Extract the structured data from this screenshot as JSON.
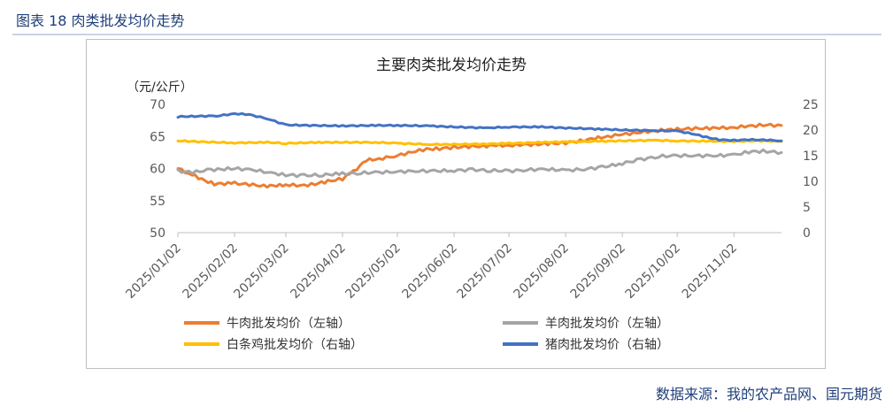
{
  "figure": {
    "title": "图表 18  肉类批发均价走势",
    "source": "数据来源：我的农产品网、国元期货"
  },
  "colors": {
    "beef": "#ED7D31",
    "mutton": "#A5A5A5",
    "chicken": "#FFC000",
    "pork": "#4472C4",
    "axis": "#bfbfbf",
    "text": "#595959"
  },
  "chart_data": {
    "type": "line",
    "title": "主要肉类批发均价走势",
    "left_unit": "（元/公斤）",
    "ylim_left": [
      50,
      70
    ],
    "ylim_right": [
      0,
      25
    ],
    "yticks_left": [
      50,
      55,
      60,
      65,
      70
    ],
    "yticks_right": [
      0,
      5,
      10,
      15,
      20,
      25
    ],
    "x_start": "2025/01/02",
    "x_end": "2025/11/28",
    "xtick_labels": [
      "2025/01/02",
      "2025/02/02",
      "2025/03/02",
      "2025/04/02",
      "2025/05/02",
      "2025/06/02",
      "2025/07/02",
      "2025/08/02",
      "2025/09/02",
      "2025/10/02",
      "2025/11/02"
    ],
    "legend_position": "bottom",
    "series": [
      {
        "name": "牛肉批发均价（左轴）",
        "axis": "left",
        "color_key": "beef",
        "x": [
          "2025/01/02",
          "2025/01/08",
          "2025/01/15",
          "2025/01/22",
          "2025/02/02",
          "2025/02/10",
          "2025/02/18",
          "2025/02/25",
          "2025/03/02",
          "2025/03/10",
          "2025/03/18",
          "2025/03/25",
          "2025/04/02",
          "2025/04/08",
          "2025/04/15",
          "2025/04/22",
          "2025/05/02",
          "2025/05/10",
          "2025/05/18",
          "2025/05/25",
          "2025/06/02",
          "2025/06/10",
          "2025/06/18",
          "2025/06/25",
          "2025/07/02",
          "2025/07/10",
          "2025/07/18",
          "2025/07/25",
          "2025/08/02",
          "2025/08/10",
          "2025/08/18",
          "2025/08/25",
          "2025/09/02",
          "2025/09/10",
          "2025/09/18",
          "2025/09/25",
          "2025/10/02",
          "2025/10/10",
          "2025/10/18",
          "2025/10/25",
          "2025/11/02",
          "2025/11/10",
          "2025/11/18",
          "2025/11/28"
        ],
        "y": [
          60.0,
          59.3,
          58.3,
          57.6,
          57.7,
          57.5,
          57.3,
          57.3,
          57.5,
          57.3,
          57.6,
          58.0,
          58.4,
          59.5,
          61.3,
          61.5,
          62.0,
          62.6,
          63.0,
          63.1,
          63.3,
          63.4,
          63.5,
          63.6,
          63.6,
          63.7,
          63.8,
          63.9,
          64.0,
          64.3,
          64.7,
          65.0,
          65.3,
          65.6,
          65.8,
          66.0,
          66.1,
          66.2,
          66.3,
          66.3,
          66.4,
          66.6,
          66.8,
          66.7
        ]
      },
      {
        "name": "羊肉批发均价（左轴）",
        "axis": "left",
        "color_key": "mutton",
        "x": [
          "2025/01/02",
          "2025/01/10",
          "2025/01/20",
          "2025/02/02",
          "2025/02/12",
          "2025/02/22",
          "2025/03/02",
          "2025/03/12",
          "2025/03/22",
          "2025/04/02",
          "2025/04/12",
          "2025/04/22",
          "2025/05/02",
          "2025/05/12",
          "2025/05/22",
          "2025/06/02",
          "2025/06/12",
          "2025/06/22",
          "2025/07/02",
          "2025/07/12",
          "2025/07/22",
          "2025/08/02",
          "2025/08/12",
          "2025/08/22",
          "2025/09/02",
          "2025/09/12",
          "2025/09/22",
          "2025/10/02",
          "2025/10/12",
          "2025/10/22",
          "2025/11/02",
          "2025/11/10",
          "2025/11/18",
          "2025/11/28"
        ],
        "y": [
          59.6,
          59.4,
          59.8,
          60.0,
          59.8,
          59.3,
          59.0,
          58.9,
          59.0,
          59.2,
          59.3,
          59.4,
          59.5,
          59.6,
          59.6,
          59.7,
          59.8,
          59.7,
          59.6,
          59.8,
          59.9,
          59.7,
          59.9,
          60.2,
          60.8,
          61.4,
          61.9,
          62.0,
          62.0,
          62.0,
          62.1,
          62.6,
          62.7,
          62.5
        ]
      },
      {
        "name": "白条鸡批发均价（右轴）",
        "axis": "right",
        "color_key": "chicken",
        "x": [
          "2025/01/02",
          "2025/01/15",
          "2025/02/02",
          "2025/02/20",
          "2025/03/02",
          "2025/03/20",
          "2025/04/02",
          "2025/04/20",
          "2025/05/02",
          "2025/05/20",
          "2025/06/02",
          "2025/06/20",
          "2025/07/02",
          "2025/07/20",
          "2025/08/02",
          "2025/08/20",
          "2025/09/02",
          "2025/09/20",
          "2025/10/02",
          "2025/10/20",
          "2025/11/02",
          "2025/11/15",
          "2025/11/28"
        ],
        "y": [
          17.9,
          17.7,
          17.5,
          17.6,
          17.4,
          17.6,
          17.6,
          17.6,
          17.4,
          17.2,
          17.2,
          17.3,
          17.4,
          17.6,
          17.7,
          17.8,
          17.9,
          18.0,
          17.9,
          17.8,
          17.8,
          17.9,
          17.8
        ]
      },
      {
        "name": "猪肉批发均价（右轴）",
        "axis": "right",
        "color_key": "pork",
        "x": [
          "2025/01/02",
          "2025/01/15",
          "2025/01/25",
          "2025/02/02",
          "2025/02/10",
          "2025/02/20",
          "2025/03/02",
          "2025/03/15",
          "2025/04/02",
          "2025/04/20",
          "2025/05/02",
          "2025/05/20",
          "2025/06/02",
          "2025/06/20",
          "2025/07/02",
          "2025/07/20",
          "2025/08/02",
          "2025/08/20",
          "2025/09/02",
          "2025/09/20",
          "2025/10/02",
          "2025/10/10",
          "2025/10/18",
          "2025/10/25",
          "2025/11/02",
          "2025/11/10",
          "2025/11/18",
          "2025/11/28"
        ],
        "y": [
          22.6,
          22.7,
          22.8,
          23.2,
          23.0,
          22.2,
          21.0,
          20.9,
          20.8,
          20.9,
          20.9,
          20.8,
          20.6,
          20.4,
          20.6,
          20.6,
          20.4,
          20.2,
          20.0,
          19.9,
          19.8,
          19.3,
          18.6,
          18.1,
          18.0,
          18.1,
          18.1,
          17.9
        ]
      }
    ]
  }
}
